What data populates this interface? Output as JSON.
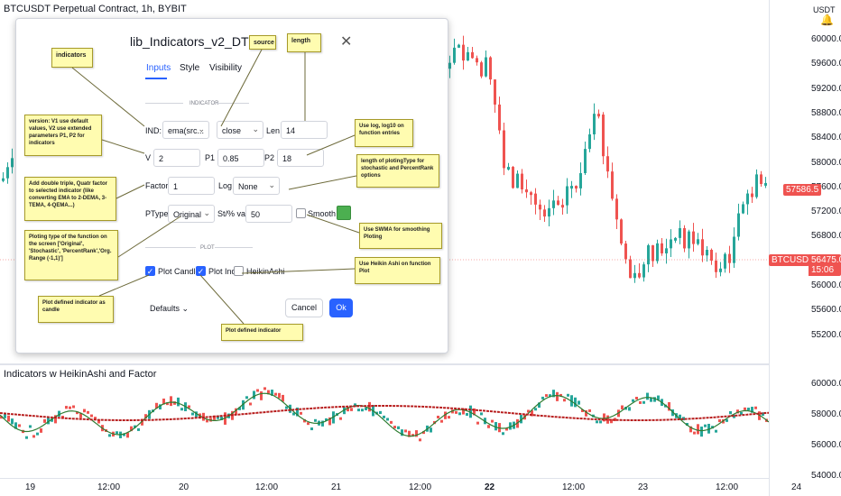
{
  "chart": {
    "title": "BTCUSDT Perpetual Contract, 1h, BYBIT",
    "currency": "USDT",
    "price_labels": [
      "60000.0",
      "59600.0",
      "59200.0",
      "58800.0",
      "58400.0",
      "58000.0",
      "57600.0",
      "57200.0",
      "56800.0",
      "56400.0",
      "56000.0",
      "55600.0",
      "55200.0"
    ],
    "price_tag": "57586.5",
    "symbol_tag": "BTCUSDT",
    "last_price": "56475.0",
    "countdown": "15:06",
    "indicator_title": "Indicators w HeikinAshi and Factor",
    "indicator_labels": [
      "60000.0",
      "58000.0",
      "56000.0",
      "54000.0"
    ],
    "time_labels": [
      "19",
      "12:00",
      "20",
      "12:00",
      "21",
      "12:00",
      "22",
      "12:00",
      "23",
      "12:00",
      "24"
    ],
    "colors": {
      "up": "#26a69a",
      "down": "#ef5350",
      "accent": "#2962ff",
      "tag_red": "#ef5350"
    }
  },
  "dialog": {
    "title": "lib_Indicators_v2_DTU",
    "tabs": [
      "Inputs",
      "Style",
      "Visibility"
    ],
    "section_indicator": "INDICATOR",
    "section_plot": "PLOT",
    "ind_label": "IND:",
    "ind_value": "ema(src...",
    "source_value": "close",
    "len_label": "Len",
    "len_value": "14",
    "v_label": "V",
    "v_value": "2",
    "p1_label": "P1",
    "p1_value": "0.85",
    "p2_label": "P2",
    "p2_value": "18",
    "factor_label": "Factor",
    "factor_value": "1",
    "log_label": "Log",
    "log_value": "None",
    "ptype_label": "PType",
    "ptype_value": "Original",
    "stval_label": "St/% val",
    "stval_value": "50",
    "smooth_label": "Smooth",
    "plot_candle_label": "Plot Candle",
    "plot_ind_label": "Plot Ind",
    "heikinashi_label": "HeikinAshi",
    "defaults_label": "Defaults",
    "cancel_label": "Cancel",
    "ok_label": "Ok"
  },
  "notes": {
    "indicators": "indicators",
    "source": "source",
    "length": "length",
    "version": "version: V1 use default values, V2 use extended  parameters P1, P2 for indicators",
    "log": "Use log, log10 on function entries",
    "ploting_type_len": "length of plotingType for stochastic and PercentRank options",
    "factor": "Add double triple, Quatr factor to selected  indicator (like converting EMA to 2-DEMA, 3-TEMA, 4-QEMA...)",
    "swma": "Use SWMA for smoothing Ploting",
    "ptype": "Ploting type of the function on the screen ['Original', 'Stochastic', 'PercentRank','Org. Range (-1,1)']",
    "heikin": "Use Heikin Ashi on function Plot",
    "plot_candle": "Plot defined indicator as candle",
    "plot_ind": "Plot defined indicator"
  }
}
